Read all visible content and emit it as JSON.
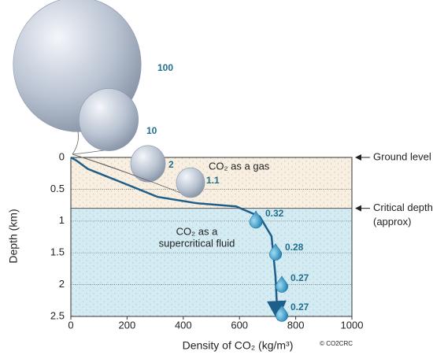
{
  "chart_data": {
    "type": "line",
    "x_label": "Density of CO₂ (kg/m³)",
    "y_label": "Depth (km)",
    "x": [
      0,
      20,
      60,
      168,
      308,
      448,
      588,
      672,
      714,
      728,
      734
    ],
    "values": [
      0,
      0.05,
      0.18,
      0.37,
      0.62,
      0.72,
      0.77,
      0.93,
      1.24,
      1.86,
      2.41
    ],
    "color": "#1d5f8a",
    "xlim": [
      0,
      1000
    ],
    "xticks": [
      0,
      200,
      400,
      600,
      800,
      1000
    ],
    "ylim": [
      0,
      2.5
    ],
    "yticks": [
      0,
      0.5,
      1,
      1.5,
      2,
      2.5
    ],
    "y_inverted": true,
    "grid": true,
    "ground_depth": 0,
    "critical_depth": 0.8,
    "gas_zone_color": "#f8efe0",
    "fluid_zone_color": "#d3ecf3",
    "gas_label": "CO₂ as a gas",
    "fluid_label": [
      "CO₂ as a",
      "supercritical fluid"
    ],
    "ground_label": "Ground level",
    "critical_label": [
      "Critical depth",
      "(approx)"
    ],
    "gas_volumes": [
      100,
      10,
      2,
      1.1
    ],
    "fluid_volumes": [
      0.32,
      0.28,
      0.27,
      0.27
    ],
    "credit": "© CO2CRC"
  }
}
